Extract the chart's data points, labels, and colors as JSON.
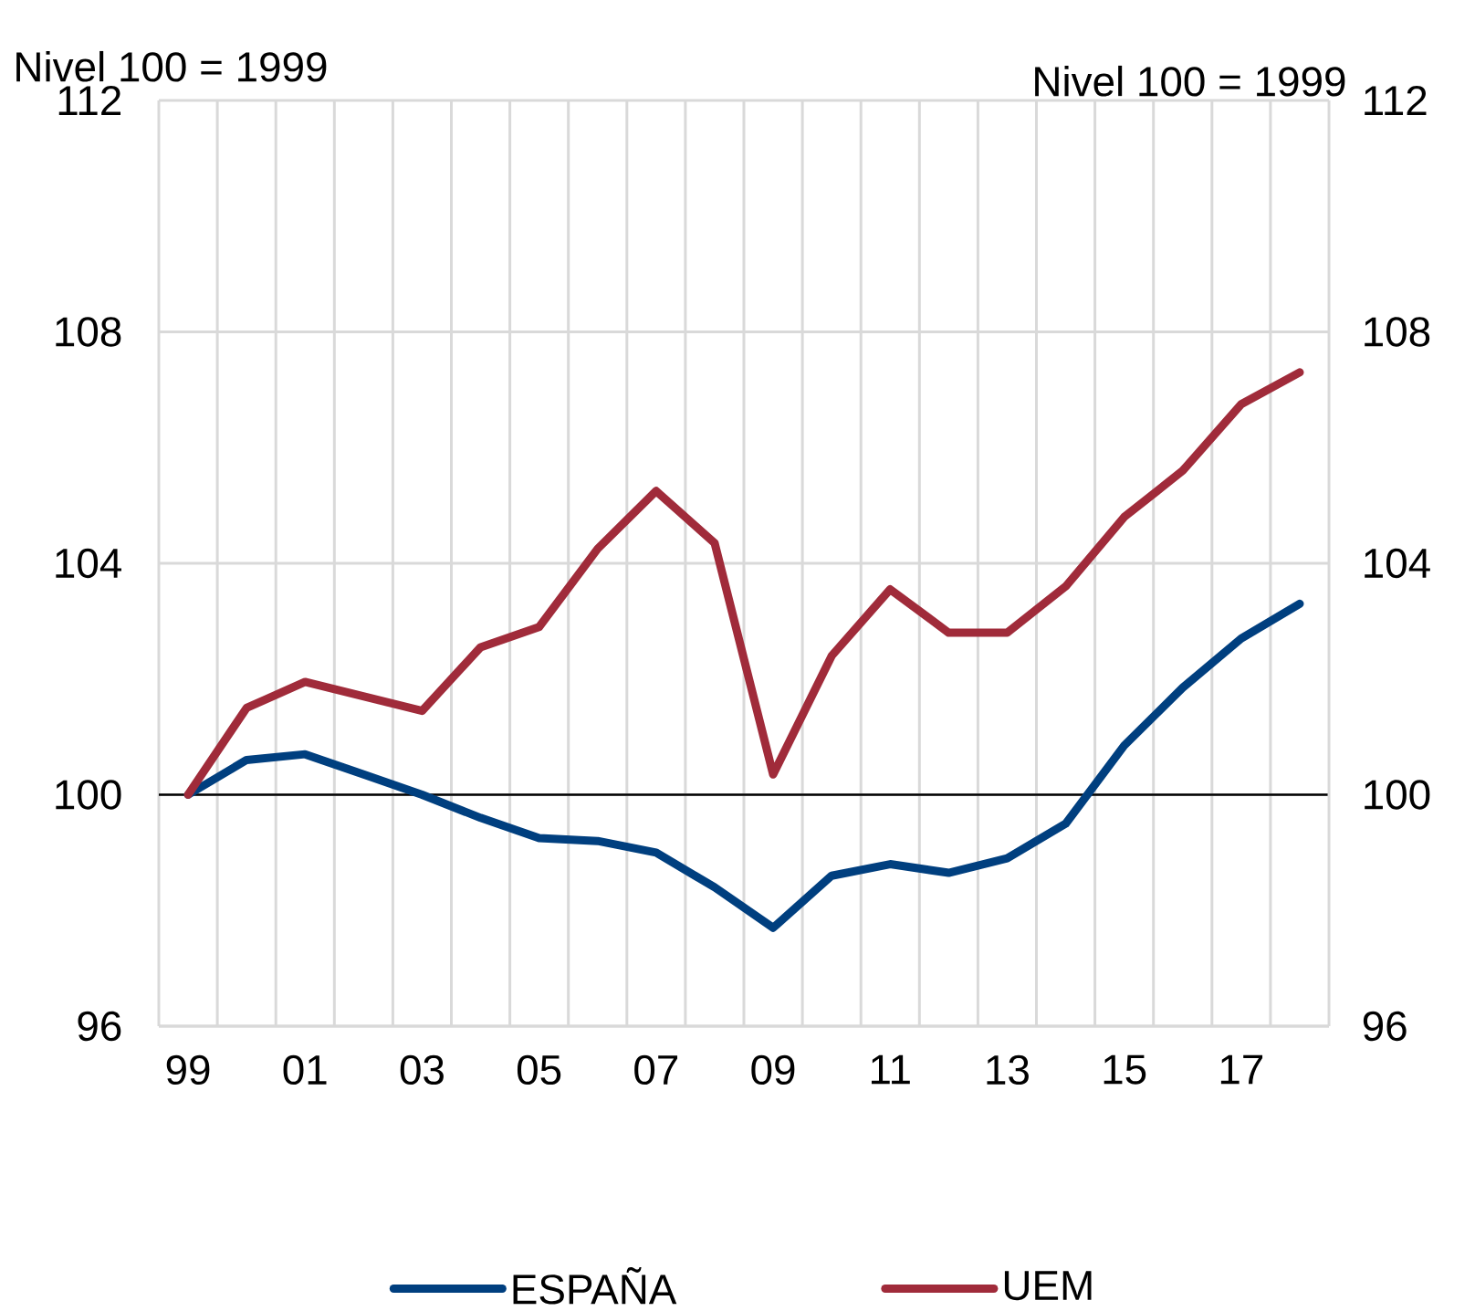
{
  "chart_data": {
    "type": "line",
    "ylabel": "Nivel 100 = 1999",
    "y2label": "Nivel 100 = 1999",
    "categories": [
      "99",
      null,
      "01",
      null,
      "03",
      null,
      "05",
      null,
      "07",
      null,
      "09",
      null,
      "11",
      null,
      "13",
      null,
      "15",
      null,
      "17",
      null
    ],
    "series": [
      {
        "name": "ESPAÑA",
        "color": "#003f7f",
        "values": [
          100.0,
          100.6,
          100.7,
          100.35,
          100.0,
          99.6,
          99.25,
          99.2,
          99.0,
          98.4,
          97.7,
          98.6,
          98.8,
          98.65,
          98.9,
          99.5,
          100.85,
          101.85,
          102.7,
          103.3
        ]
      },
      {
        "name": "UEM",
        "color": "#a02b3a",
        "values": [
          100.0,
          101.5,
          101.95,
          101.7,
          101.45,
          102.55,
          102.9,
          104.25,
          105.25,
          104.35,
          100.35,
          102.4,
          103.55,
          102.8,
          102.8,
          103.6,
          104.8,
          105.6,
          106.75,
          107.3
        ]
      }
    ],
    "ylim": [
      96,
      112
    ],
    "yticks": [
      96,
      100,
      104,
      108,
      112
    ],
    "y2lim": [
      96,
      112
    ],
    "y2ticks": [
      96,
      100,
      104,
      108,
      112
    ],
    "ref_lines": [
      {
        "axis": "y",
        "value": 100,
        "color": "#000000"
      }
    ],
    "grid": true,
    "legend": "bottom",
    "marker": "none",
    "line_style": "solid"
  }
}
